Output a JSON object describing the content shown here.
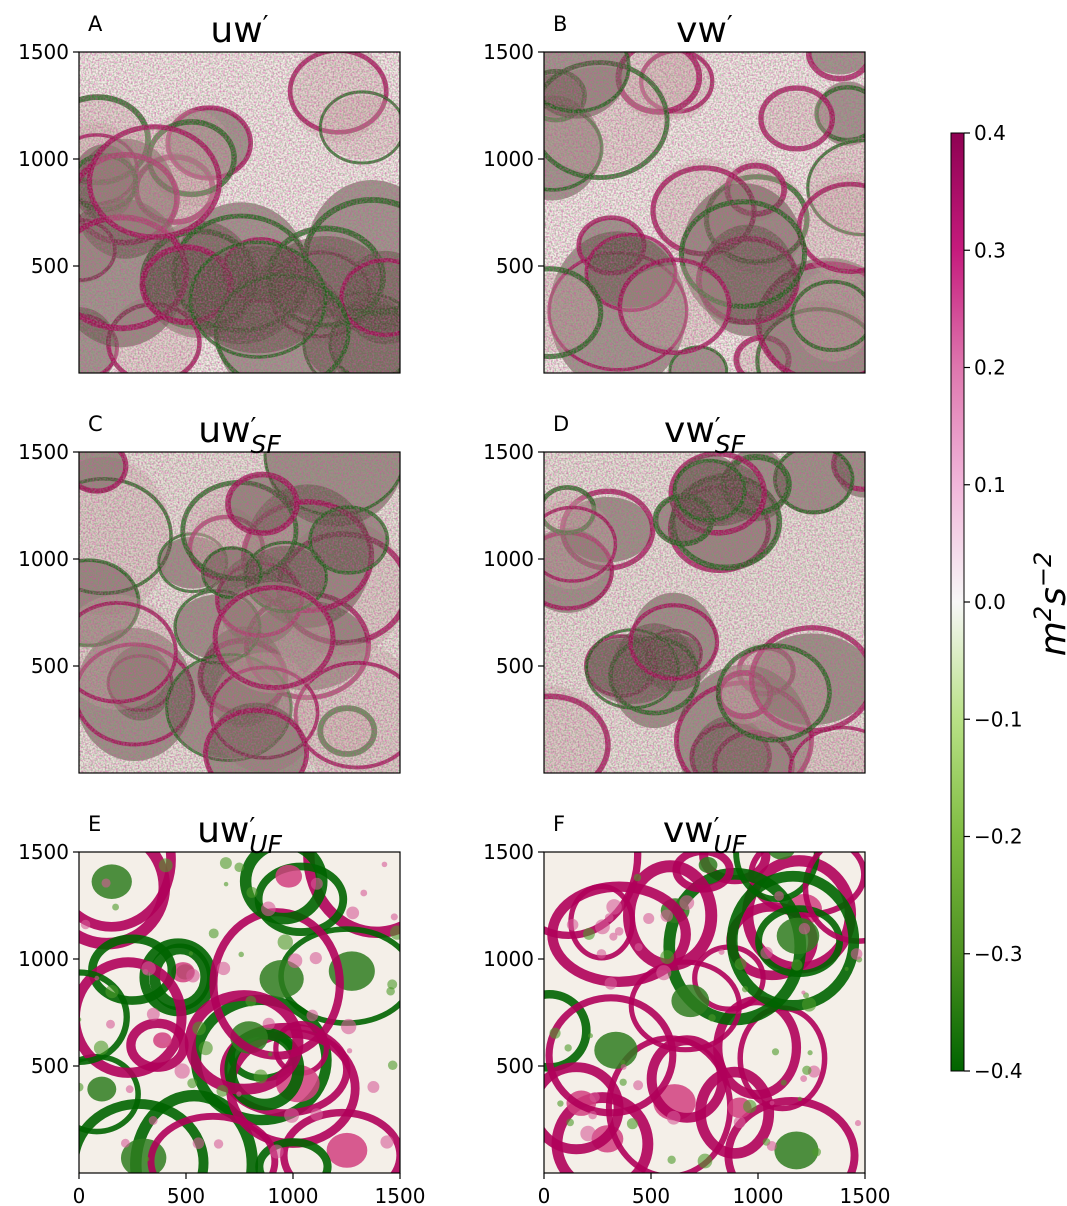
{
  "chart_data": {
    "type": "heatmap",
    "panels": [
      {
        "id": "A",
        "letter": "A",
        "title": "uw",
        "mark": "′",
        "subscript": ""
      },
      {
        "id": "B",
        "letter": "B",
        "title": "vw",
        "mark": "′",
        "subscript": ""
      },
      {
        "id": "C",
        "letter": "C",
        "title": "uw",
        "mark": "′",
        "subscript": "SF"
      },
      {
        "id": "D",
        "letter": "D",
        "title": "vw",
        "mark": "′",
        "subscript": "SF"
      },
      {
        "id": "E",
        "letter": "E",
        "title": "uw",
        "mark": "′",
        "subscript": "UF"
      },
      {
        "id": "F",
        "letter": "F",
        "title": "vw",
        "mark": "′",
        "subscript": "UF"
      }
    ],
    "x_ticks": [
      "0",
      "500",
      "1000",
      "1500"
    ],
    "y_ticks": [
      "500",
      "1000",
      "1500"
    ],
    "xlim": [
      0,
      1500
    ],
    "ylim": [
      0,
      1500
    ],
    "colorbar": {
      "label": "m²s⁻²",
      "label_base": "m",
      "label_exp1": "2",
      "label_mid": "s",
      "label_exp2": "−2",
      "range": [
        -0.4,
        0.4
      ],
      "ticks": [
        "0.4",
        "0.3",
        "0.2",
        "0.1",
        "0.0",
        "−0.1",
        "−0.2",
        "−0.3",
        "−0.4"
      ],
      "colormap": "PiYG_r",
      "color_pos": "#8e0152",
      "color_mid": "#f7f7f7",
      "color_neg": "#276419"
    }
  }
}
